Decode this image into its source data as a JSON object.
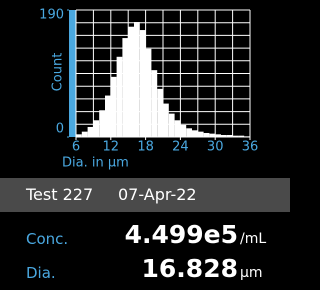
{
  "chart_data": {
    "type": "histogram",
    "x_label": "Dia. in µm",
    "y_label": "Count",
    "bins": [
      6,
      7,
      8,
      9,
      10,
      11,
      12,
      13,
      14,
      15,
      16,
      17,
      18,
      19,
      20,
      21,
      22,
      23,
      24,
      25,
      26,
      27,
      28,
      29,
      30,
      31,
      32,
      33,
      34,
      35,
      36
    ],
    "values": [
      4,
      8,
      15,
      25,
      40,
      62,
      90,
      120,
      148,
      165,
      172,
      160,
      132,
      100,
      72,
      50,
      35,
      25,
      18,
      13,
      10,
      8,
      6,
      5,
      4,
      3,
      3,
      2,
      2,
      1
    ],
    "color": "#ffffff",
    "xlim": [
      6,
      36
    ],
    "xticks": [
      6,
      12,
      18,
      24,
      30,
      36
    ],
    "ylim": [
      0,
      190
    ],
    "yticks": [
      0,
      190
    ],
    "grid": true,
    "grid_x_step": 3,
    "grid_y_divisions": 10
  },
  "info": {
    "test": "Test 227",
    "date": "07-Apr-22",
    "rows": [
      {
        "label": "Conc.",
        "value": "4.499e5",
        "unit": "/mL"
      },
      {
        "label": "Dia.",
        "value": "16.828",
        "unit": "µm"
      }
    ]
  }
}
